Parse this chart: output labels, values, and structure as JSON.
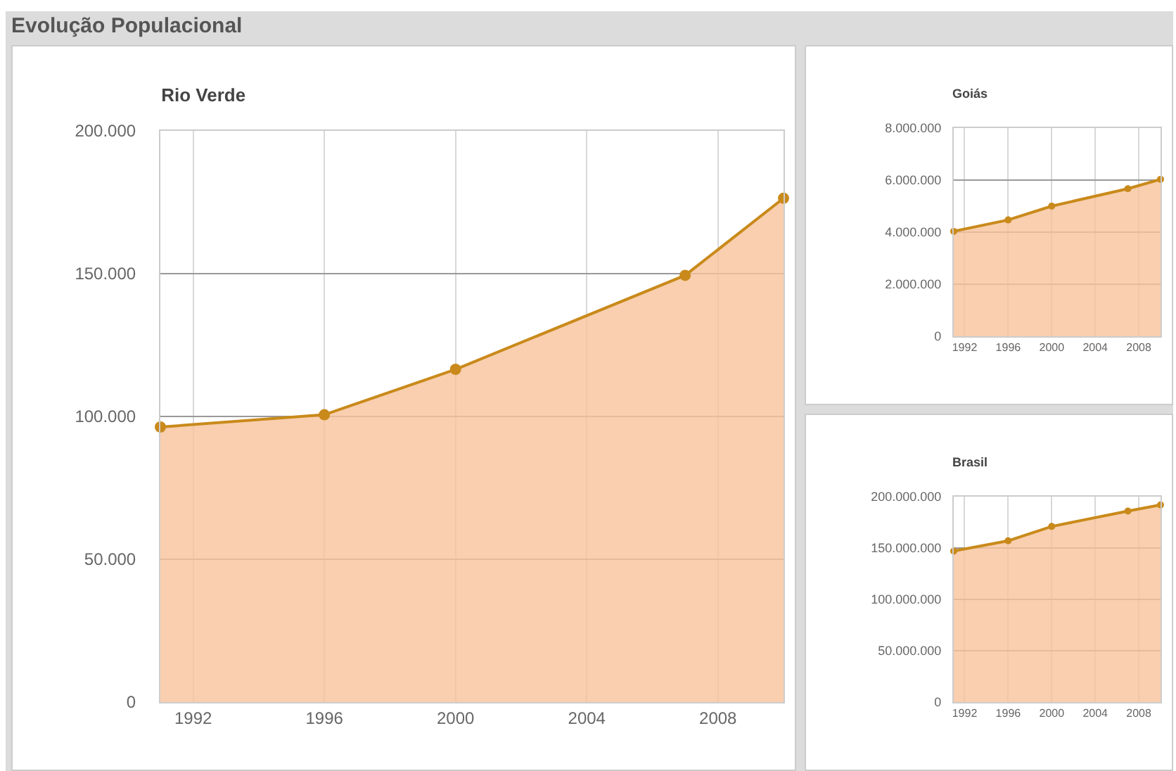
{
  "chart_data": [
    {
      "type": "area",
      "title": "Evolução Populacional",
      "subtitle": "Rio Verde",
      "x": [
        1991,
        1996,
        2000,
        2007,
        2010
      ],
      "series": [
        {
          "color": "#f8c39b",
          "values": [
            96300,
            100600,
            116500,
            149400,
            176400
          ]
        }
      ],
      "xlim": [
        1991,
        2010
      ],
      "xticks": [
        1992,
        1996,
        2000,
        2004,
        2008
      ],
      "ylim": [
        0,
        200000
      ],
      "yticks": [
        {
          "value": 0,
          "label": "0"
        },
        {
          "value": 50000,
          "label": "50.000"
        },
        {
          "value": 100000,
          "label": "100.000"
        },
        {
          "value": 150000,
          "label": "150.000"
        },
        {
          "value": 200000,
          "label": "200.000"
        }
      ],
      "grid": true,
      "marker": "circle"
    },
    {
      "type": "area",
      "title": "Goiás",
      "x": [
        1991,
        1996,
        2000,
        2007,
        2010
      ],
      "series": [
        {
          "color": "#f8c39b",
          "values": [
            4030000,
            4470000,
            5000000,
            5670000,
            6030000
          ]
        }
      ],
      "xlim": [
        1991,
        2010
      ],
      "xticks": [
        1992,
        1996,
        2000,
        2004,
        2008
      ],
      "ylim": [
        0,
        8000000
      ],
      "yticks": [
        {
          "value": 0,
          "label": "0"
        },
        {
          "value": 2000000,
          "label": "2.000.000"
        },
        {
          "value": 4000000,
          "label": "4.000.000"
        },
        {
          "value": 6000000,
          "label": "6.000.000"
        },
        {
          "value": 8000000,
          "label": "8.000.000"
        }
      ],
      "grid": true,
      "marker": "circle"
    },
    {
      "type": "area",
      "title": "Brasil",
      "x": [
        1991,
        1996,
        2000,
        2007,
        2010
      ],
      "series": [
        {
          "color": "#f8c39b",
          "values": [
            147000000,
            157000000,
            171000000,
            186000000,
            192000000
          ]
        }
      ],
      "xlim": [
        1991,
        2010
      ],
      "xticks": [
        1992,
        1996,
        2000,
        2004,
        2008
      ],
      "ylim": [
        0,
        200000000
      ],
      "yticks": [
        {
          "value": 0,
          "label": "0"
        },
        {
          "value": 50000000,
          "label": "50.000.000"
        },
        {
          "value": 100000000,
          "label": "100.000.000"
        },
        {
          "value": 150000000,
          "label": "150.000.000"
        },
        {
          "value": 200000000,
          "label": "200.000.000"
        }
      ],
      "grid": true,
      "marker": "circle"
    }
  ]
}
